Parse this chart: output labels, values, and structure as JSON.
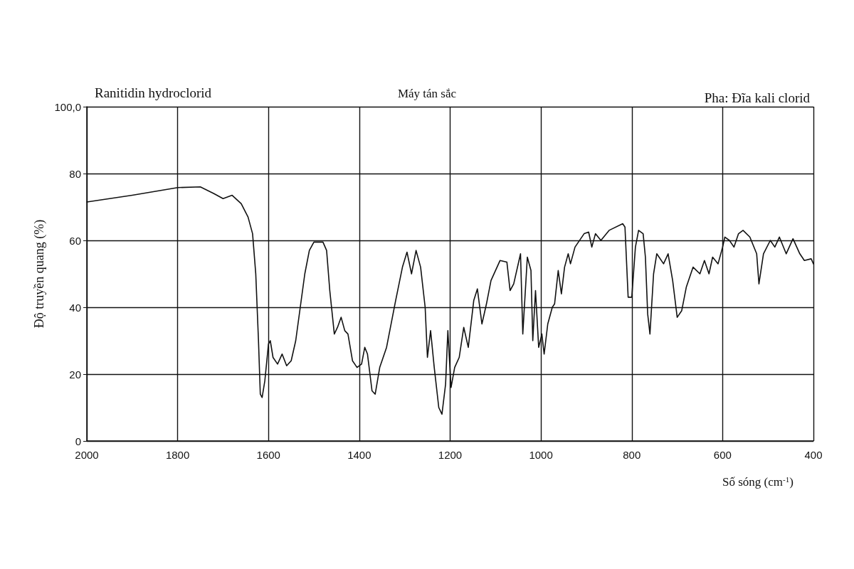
{
  "chart_data": {
    "type": "line",
    "title": "Ranitidin hydroclorid",
    "subtitle": "Máy tán sắc",
    "annotations": [
      "Pha: Đĩa kali clorid"
    ],
    "xlabel": "Số sóng (cm$^{-1}$)",
    "ylabel": "Độ truyền quang (%)",
    "xlim": [
      2000,
      400
    ],
    "xticks": [
      2000,
      1800,
      1600,
      1400,
      1200,
      1000,
      800,
      600,
      400
    ],
    "ylim": [
      0,
      100
    ],
    "yticks": [
      0,
      20,
      40,
      60,
      80,
      {
        "value": 100,
        "label": "100,0"
      }
    ],
    "grid": true,
    "marker": "none",
    "line_style": "solid",
    "x": [
      2000,
      1900,
      1800,
      1750,
      1720,
      1700,
      1680,
      1660,
      1645,
      1635,
      1628,
      1622,
      1618,
      1614,
      1608,
      1600,
      1596,
      1590,
      1580,
      1570,
      1560,
      1550,
      1540,
      1530,
      1520,
      1510,
      1500,
      1490,
      1480,
      1472,
      1465,
      1455,
      1448,
      1440,
      1432,
      1425,
      1415,
      1405,
      1395,
      1388,
      1382,
      1372,
      1365,
      1355,
      1340,
      1320,
      1305,
      1295,
      1285,
      1275,
      1265,
      1255,
      1250,
      1243,
      1235,
      1225,
      1218,
      1210,
      1205,
      1198,
      1190,
      1180,
      1170,
      1160,
      1148,
      1140,
      1130,
      1120,
      1110,
      1090,
      1075,
      1068,
      1060,
      1045,
      1040,
      1030,
      1022,
      1018,
      1012,
      1005,
      998,
      993,
      985,
      975,
      970,
      962,
      955,
      948,
      940,
      935,
      925,
      905,
      895,
      888,
      880,
      868,
      850,
      820,
      815,
      808,
      800,
      792,
      785,
      775,
      770,
      765,
      760,
      752,
      745,
      730,
      720,
      710,
      700,
      690,
      680,
      665,
      650,
      640,
      630,
      622,
      610,
      600,
      595,
      585,
      575,
      565,
      555,
      540,
      525,
      520,
      510,
      495,
      485,
      475,
      460,
      445,
      430,
      420,
      405,
      400
    ],
    "series": [
      {
        "color": "#111111",
        "values": [
          71.5,
          73.5,
          75.8,
          76,
          74,
          72.5,
          73.5,
          71,
          67,
          62,
          50,
          30,
          14,
          13,
          18,
          29,
          30,
          25,
          23,
          26,
          22.5,
          24,
          30,
          40,
          50,
          57,
          59.5,
          59.5,
          59.5,
          57,
          45,
          32,
          34,
          37,
          33,
          32,
          24,
          22,
          23,
          28,
          26,
          15,
          14,
          22,
          28,
          42,
          52,
          56.5,
          50,
          57,
          52,
          40,
          25,
          33,
          22,
          10,
          8,
          17,
          33,
          16,
          22,
          25,
          34,
          28,
          42,
          45.5,
          35,
          41,
          48,
          54,
          53.5,
          45,
          47,
          56,
          32,
          55,
          51,
          30,
          45,
          28,
          32,
          26,
          35,
          40,
          41,
          51,
          44,
          52,
          56,
          53,
          58,
          62,
          62.5,
          58,
          62,
          60,
          63,
          65,
          64,
          43,
          43,
          58,
          63,
          62,
          55,
          38,
          32,
          50,
          56,
          53,
          56,
          48,
          37,
          39,
          46,
          52,
          50,
          54,
          50,
          55,
          53,
          58,
          61,
          60,
          58,
          62,
          63,
          61,
          56,
          47,
          56,
          60,
          58,
          61,
          56,
          60.5,
          56,
          54,
          54.5,
          53
        ]
      }
    ]
  }
}
